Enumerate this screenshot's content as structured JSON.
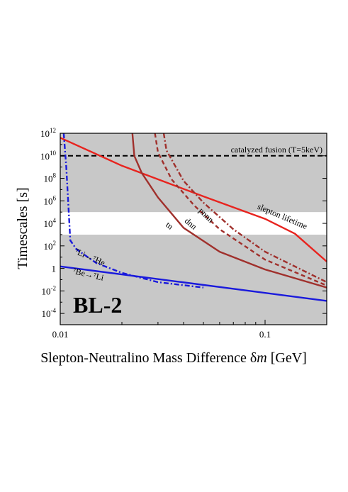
{
  "chart_data": {
    "type": "line",
    "xlabel": "Slepton-Neutralino Mass Difference  δm [GeV]",
    "xlabel_parts": [
      "Slepton-Neutralino Mass Difference  δ",
      "m",
      " [GeV]"
    ],
    "ylabel": "Timescales [s]",
    "xscale": "log",
    "yscale": "log",
    "xlim": [
      0.01,
      0.2
    ],
    "ylim": [
      1e-05,
      1000000000000
    ],
    "x_ticks": [
      {
        "value": 0.01,
        "label": "0.01"
      },
      {
        "value": 0.1,
        "label": "0.1"
      }
    ],
    "y_ticks": [
      {
        "value": 1000000000000.0,
        "base": "10",
        "exp": "12"
      },
      {
        "value": 10000000000.0,
        "base": "10",
        "exp": "10"
      },
      {
        "value": 100000000.0,
        "base": "10",
        "exp": "8"
      },
      {
        "value": 1000000.0,
        "base": "10",
        "exp": "6"
      },
      {
        "value": 10000.0,
        "base": "10",
        "exp": "4"
      },
      {
        "value": 100.0,
        "base": "10",
        "exp": "2"
      },
      {
        "value": 1,
        "base": "1",
        "exp": ""
      },
      {
        "value": 0.01,
        "base": "10",
        "exp": "-2"
      },
      {
        "value": 0.0001,
        "base": "10",
        "exp": "-4"
      }
    ],
    "shaded_regions": [
      {
        "y_range": [
          1e-05,
          1000
        ],
        "color": "#c8c8c8"
      },
      {
        "y_range": [
          1000,
          100000
        ],
        "color": "#ffffff"
      },
      {
        "y_range": [
          100000,
          1000000000000
        ],
        "color": "#c8c8c8"
      }
    ],
    "reference_lines": [
      {
        "y": 10000000000.0,
        "label": "catalyzed fusion (T=5keV)",
        "color": "#000000",
        "dash": "dashed"
      }
    ],
    "panel_label": "BL-2",
    "series": [
      {
        "name": "slepton lifetime",
        "color": "#e8231e",
        "style": "solid",
        "x": [
          0.01,
          0.02,
          0.05,
          0.1,
          0.14,
          0.2
        ],
        "y": [
          400000000000.0,
          1300000000.0,
          2500000.0,
          25000.0,
          1200.0,
          4
        ]
      },
      {
        "name": "tn",
        "color": "#a0302c",
        "style": "solid",
        "x": [
          0.0225,
          0.023,
          0.025,
          0.03,
          0.04,
          0.06,
          0.1,
          0.2
        ],
        "y": [
          1000000000000.0,
          10000000000.0,
          300000000.0,
          2000000.0,
          4000.0,
          30,
          0.8,
          0.02
        ]
      },
      {
        "name": "dnn",
        "color": "#a0302c",
        "style": "dashed",
        "x": [
          0.029,
          0.03,
          0.035,
          0.045,
          0.06,
          0.1,
          0.2
        ],
        "y": [
          1000000000000.0,
          20000000000.0,
          80000000.0,
          400000.0,
          3000.0,
          6,
          0.03
        ]
      },
      {
        "name": "pnnn",
        "color": "#a0302c",
        "style": "dashdot",
        "x": [
          0.032,
          0.033,
          0.04,
          0.05,
          0.07,
          0.1,
          0.2
        ],
        "y": [
          1000000000000.0,
          30000000000.0,
          60000000.0,
          700000.0,
          3000.0,
          30,
          0.06
        ]
      },
      {
        "name": "⁷Li→⁷He",
        "color": "#1a1adc",
        "style": "dashdot",
        "x": [
          0.0104,
          0.0107,
          0.011,
          0.0112,
          0.012,
          0.015,
          0.02,
          0.03,
          0.05
        ],
        "y": [
          1000000000000.0,
          1000000000.0,
          100000.0,
          300,
          50,
          3,
          0.4,
          0.06,
          0.02
        ]
      },
      {
        "name": "⁷Be→⁷Li",
        "color": "#1a1adc",
        "style": "solid",
        "x": [
          0.01,
          0.2
        ],
        "y": [
          1.5,
          0.0013
        ]
      }
    ],
    "annotations": [
      {
        "text": "slepton lifetime",
        "series": "slepton lifetime"
      },
      {
        "text": "tn",
        "series": "tn"
      },
      {
        "text": "dnn",
        "series": "dnn"
      },
      {
        "text": "pnnn",
        "series": "pnnn"
      },
      {
        "text": "⁷Li→⁷He",
        "series": "⁷Li→⁷He"
      },
      {
        "text": "⁷Be→⁷Li",
        "series": "⁷Be→⁷Li"
      }
    ]
  }
}
